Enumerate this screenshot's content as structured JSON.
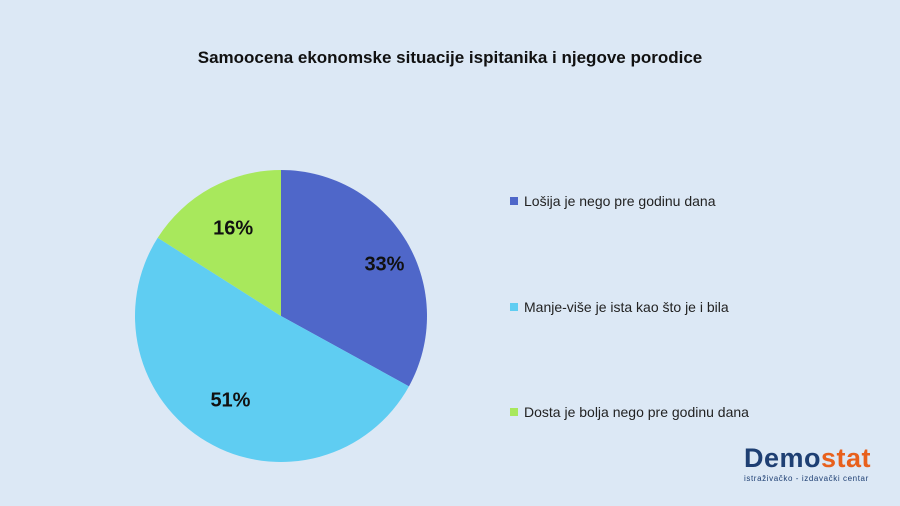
{
  "chart_data": {
    "type": "pie",
    "title": "Samoocena ekonomske situacije ispitanika i njegove porodice",
    "legend_position": "right",
    "slices": [
      {
        "name": "Lošija je nego pre godinu dana",
        "value": 33,
        "label": "33%",
        "color": "#4f67c9"
      },
      {
        "name": "Manje-više je ista kao što je i bila",
        "value": 51,
        "label": "51%",
        "color": "#5fcdf2"
      },
      {
        "name": "Dosta je bolja nego pre godinu dana",
        "value": 16,
        "label": "16%",
        "color": "#a8e85c"
      }
    ]
  },
  "logo": {
    "part1": "Demo",
    "part2": "stat",
    "subtitle": "istraživačko - izdavački centar"
  }
}
